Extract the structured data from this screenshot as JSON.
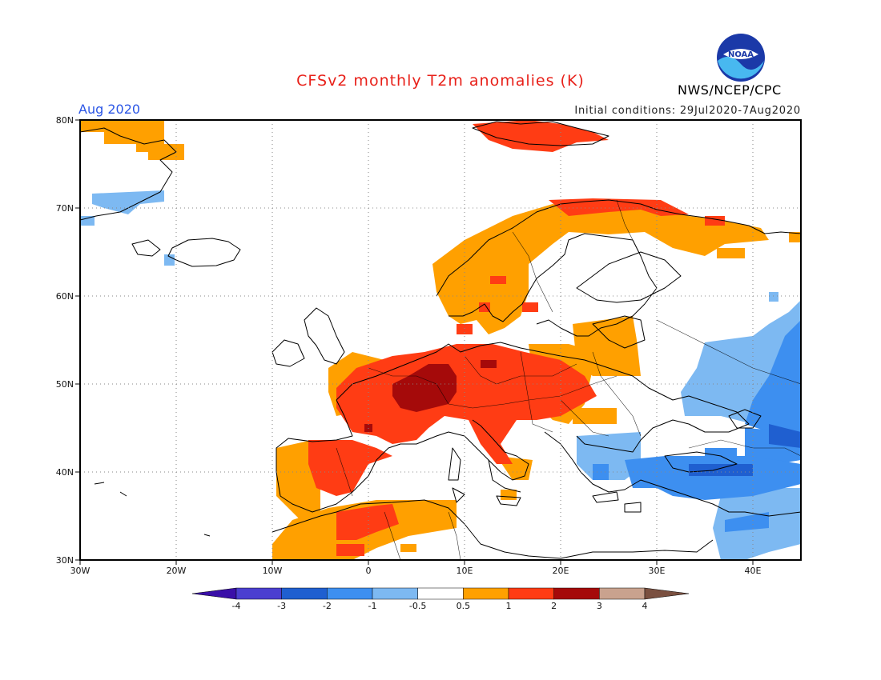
{
  "title": "CFSv2 monthly T2m anomalies (K)",
  "agency": "NWS/NCEP/CPC",
  "logo_text": "NOAA",
  "period": "Aug 2020",
  "initial_conditions": "Initial conditions: 29Jul2020-7Aug2020",
  "map": {
    "lon_range": [
      -30,
      45
    ],
    "lat_range": [
      30,
      80
    ],
    "lon_ticks": [
      "30W",
      "20W",
      "10W",
      "0",
      "10E",
      "20E",
      "30E",
      "40E"
    ],
    "lat_ticks": [
      "80N",
      "70N",
      "60N",
      "50N",
      "40N",
      "30N"
    ],
    "gridlines": "dotted"
  },
  "colorbar": {
    "labels": [
      "-4",
      "-3",
      "-2",
      "-1",
      "-0.5",
      "0.5",
      "1",
      "2",
      "3",
      "4"
    ],
    "colors": [
      "#3a0fa8",
      "#4b3fd0",
      "#1f5fd0",
      "#3d8ff0",
      "#7db9f2",
      "#ffffff",
      "#ffa000",
      "#ff3c14",
      "#a50a0a",
      "#c9a28e",
      "#7a5040"
    ]
  }
}
